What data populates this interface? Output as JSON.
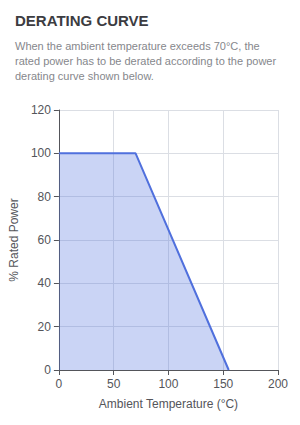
{
  "chart_data": {
    "type": "area",
    "title": "DERATING CURVE",
    "subtitle": "When the ambient temperature exceeds 70°C, the rated power has to be derated according to the power derating curve shown below.",
    "x_label": "Ambient Temperature (°C)",
    "y_label": "% Rated Power",
    "x": [
      0,
      70,
      155
    ],
    "values": [
      100,
      100,
      0
    ],
    "xlim": [
      0,
      200
    ],
    "xticks": [
      0,
      50,
      100,
      150,
      200
    ],
    "ylim": [
      0,
      120
    ],
    "yticks": [
      0,
      20,
      40,
      60,
      80,
      100,
      120
    ],
    "grid": true
  }
}
